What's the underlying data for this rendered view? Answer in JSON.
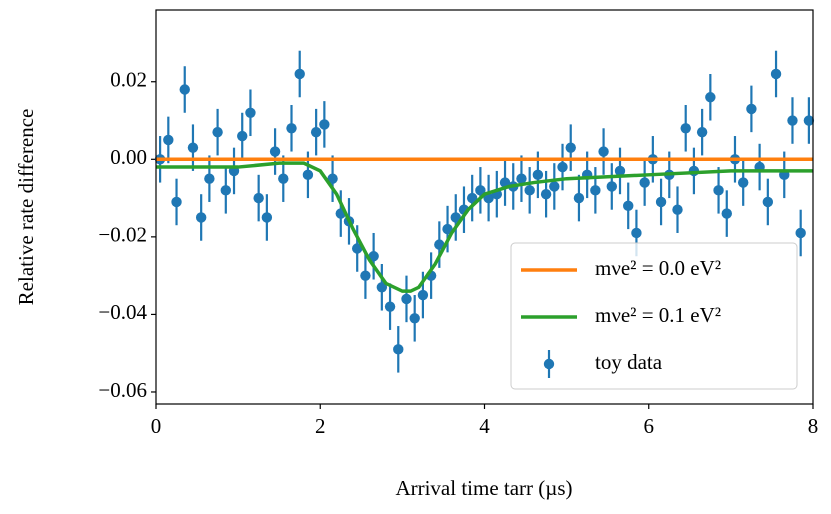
{
  "chart_data": {
    "type": "errorbar",
    "xlabel": "Arrival time tarr (µs)",
    "ylabel": "Relative rate difference",
    "xlim": [
      0,
      8
    ],
    "ylim": [
      -0.0631,
      0.0385
    ],
    "xticks": [
      0,
      2,
      4,
      6,
      8
    ],
    "yticks": [
      {
        "value": -0.06,
        "label": "−0.06"
      },
      {
        "value": -0.04,
        "label": "−0.04"
      },
      {
        "value": -0.02,
        "label": "−0.02"
      },
      {
        "value": 0,
        "label": "0.00"
      },
      {
        "value": 0.02,
        "label": "0.02"
      }
    ],
    "legend": "lower right",
    "lines": [
      {
        "name": "mνe² = 0.0 eV²",
        "color": "#ff7f0e",
        "x": [
          0,
          8
        ],
        "values": [
          0,
          0
        ]
      },
      {
        "name": "mνe² = 0.1 eV²",
        "color": "#2ca02c",
        "x": [
          0,
          0.5,
          1,
          1.5,
          1.8,
          2.0,
          2.2,
          2.4,
          2.6,
          2.8,
          3.0,
          3.1,
          3.2,
          3.4,
          3.6,
          3.8,
          4.0,
          4.3,
          4.6,
          5,
          5.5,
          6,
          7,
          8
        ],
        "values": [
          -0.002,
          -0.002,
          -0.002,
          -0.001,
          -0.001,
          -0.003,
          -0.009,
          -0.018,
          -0.026,
          -0.032,
          -0.034,
          -0.034,
          -0.033,
          -0.027,
          -0.019,
          -0.013,
          -0.009,
          -0.007,
          -0.006,
          -0.005,
          -0.0045,
          -0.004,
          -0.003,
          -0.003
        ]
      }
    ],
    "series": [
      {
        "name": "toy data",
        "color": "#1f77b4",
        "x": [
          0.05,
          0.15,
          0.25,
          0.35,
          0.45,
          0.55,
          0.65,
          0.75,
          0.85,
          0.95,
          1.05,
          1.15,
          1.25,
          1.35,
          1.45,
          1.55,
          1.65,
          1.75,
          1.85,
          1.95,
          2.05,
          2.15,
          2.25,
          2.35,
          2.45,
          2.55,
          2.65,
          2.75,
          2.85,
          2.95,
          3.05,
          3.15,
          3.25,
          3.35,
          3.45,
          3.55,
          3.65,
          3.75,
          3.85,
          3.95,
          4.05,
          4.15,
          4.25,
          4.35,
          4.45,
          4.55,
          4.65,
          4.75,
          4.85,
          4.95,
          5.05,
          5.15,
          5.25,
          5.35,
          5.45,
          5.55,
          5.65,
          5.75,
          5.85,
          5.95,
          6.05,
          6.15,
          6.25,
          6.35,
          6.45,
          6.55,
          6.65,
          6.75,
          6.85,
          6.95,
          7.05,
          7.15,
          7.25,
          7.35,
          7.45,
          7.55,
          7.65,
          7.75,
          7.85,
          7.95
        ],
        "values": [
          0.0,
          0.005,
          -0.011,
          0.018,
          0.003,
          -0.015,
          -0.005,
          0.007,
          -0.008,
          -0.003,
          0.006,
          0.012,
          -0.01,
          -0.015,
          0.002,
          -0.005,
          0.008,
          0.022,
          -0.004,
          0.007,
          0.009,
          -0.005,
          -0.014,
          -0.016,
          -0.023,
          -0.03,
          -0.025,
          -0.033,
          -0.038,
          -0.049,
          -0.036,
          -0.041,
          -0.035,
          -0.03,
          -0.022,
          -0.018,
          -0.015,
          -0.013,
          -0.01,
          -0.008,
          -0.01,
          -0.009,
          -0.006,
          -0.007,
          -0.005,
          -0.008,
          -0.004,
          -0.009,
          -0.007,
          -0.002,
          0.003,
          -0.01,
          -0.004,
          -0.008,
          0.002,
          -0.007,
          -0.003,
          -0.012,
          -0.019,
          -0.006,
          0.0,
          -0.011,
          -0.004,
          -0.013,
          0.008,
          -0.003,
          0.007,
          0.016,
          -0.008,
          -0.014,
          0.0,
          -0.006,
          0.013,
          -0.002,
          -0.011,
          0.022,
          -0.004,
          0.01,
          -0.019,
          0.01
        ],
        "errors": [
          0.006,
          0.006,
          0.006,
          0.006,
          0.006,
          0.006,
          0.006,
          0.006,
          0.006,
          0.006,
          0.006,
          0.006,
          0.006,
          0.006,
          0.006,
          0.006,
          0.006,
          0.006,
          0.006,
          0.006,
          0.006,
          0.006,
          0.006,
          0.006,
          0.006,
          0.006,
          0.006,
          0.006,
          0.006,
          0.006,
          0.006,
          0.006,
          0.006,
          0.006,
          0.006,
          0.006,
          0.006,
          0.006,
          0.006,
          0.006,
          0.006,
          0.006,
          0.006,
          0.006,
          0.006,
          0.006,
          0.006,
          0.006,
          0.006,
          0.006,
          0.006,
          0.006,
          0.006,
          0.006,
          0.006,
          0.006,
          0.006,
          0.006,
          0.006,
          0.006,
          0.006,
          0.006,
          0.006,
          0.006,
          0.006,
          0.006,
          0.006,
          0.006,
          0.006,
          0.006,
          0.006,
          0.006,
          0.006,
          0.006,
          0.006,
          0.006,
          0.006,
          0.006,
          0.006,
          0.006
        ]
      }
    ]
  }
}
